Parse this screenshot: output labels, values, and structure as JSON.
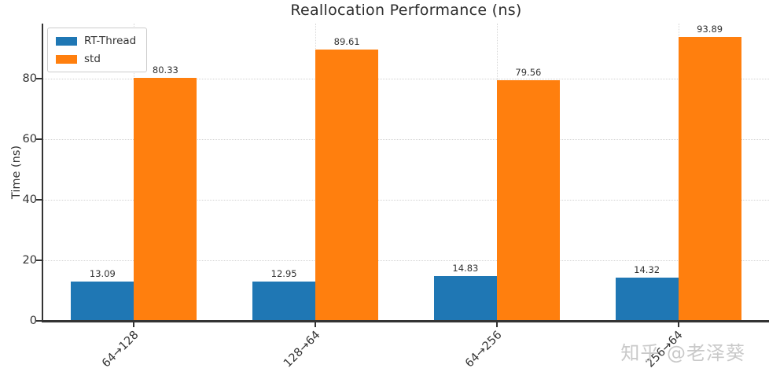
{
  "chart_data": {
    "type": "bar",
    "title": "Reallocation Performance (ns)",
    "categories": [
      "64→128",
      "128→64",
      "64→256",
      "256→64"
    ],
    "series": [
      {
        "name": "RT-Thread",
        "color": "#1f77b4",
        "values": [
          13.09,
          12.95,
          14.83,
          14.32
        ]
      },
      {
        "name": "std",
        "color": "#ff7f0e",
        "values": [
          80.33,
          89.61,
          79.56,
          93.89
        ]
      }
    ],
    "xlabel": "",
    "ylabel": "Time (ns)",
    "ylim": [
      0,
      98.2
    ],
    "yticks": [
      0,
      20,
      40,
      60,
      80
    ],
    "grid": "dotted",
    "legend_position": "upper-left",
    "value_label_decimals": 2
  },
  "watermark": {
    "text": "知乎 @老泽葵",
    "color": "#c9c9c9"
  }
}
